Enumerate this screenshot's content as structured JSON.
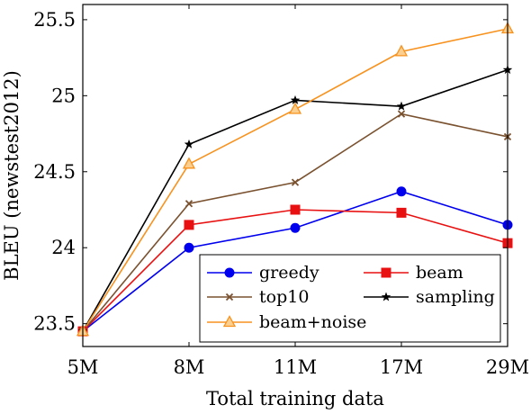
{
  "chart_data": {
    "type": "line",
    "title": "",
    "xlabel": "Total training data",
    "ylabel": "BLEU (newstest2012)",
    "categories": [
      "5M",
      "8M",
      "11M",
      "17M",
      "29M"
    ],
    "yticks": [
      "23.5",
      "24",
      "24.5",
      "25",
      "25.5"
    ],
    "ylim": [
      23.35,
      25.6
    ],
    "grid": false,
    "legend_position": "bottom-right",
    "series": [
      {
        "name": "greedy",
        "color": "#0000ee",
        "marker": "circle",
        "values": [
          23.45,
          24.0,
          24.13,
          24.37,
          24.15
        ]
      },
      {
        "name": "beam",
        "color": "#e81010",
        "marker": "square",
        "values": [
          23.45,
          24.15,
          24.25,
          24.23,
          24.03
        ]
      },
      {
        "name": "top10",
        "color": "#7a5230",
        "marker": "x",
        "values": [
          23.45,
          24.29,
          24.43,
          24.88,
          24.73
        ]
      },
      {
        "name": "sampling",
        "color": "#000000",
        "marker": "star",
        "values": [
          23.45,
          24.68,
          24.97,
          24.93,
          25.17
        ]
      },
      {
        "name": "beam+noise",
        "color": "#f7921e",
        "marker": "triangle",
        "values": [
          23.45,
          24.55,
          24.91,
          25.29,
          25.44
        ]
      }
    ]
  }
}
